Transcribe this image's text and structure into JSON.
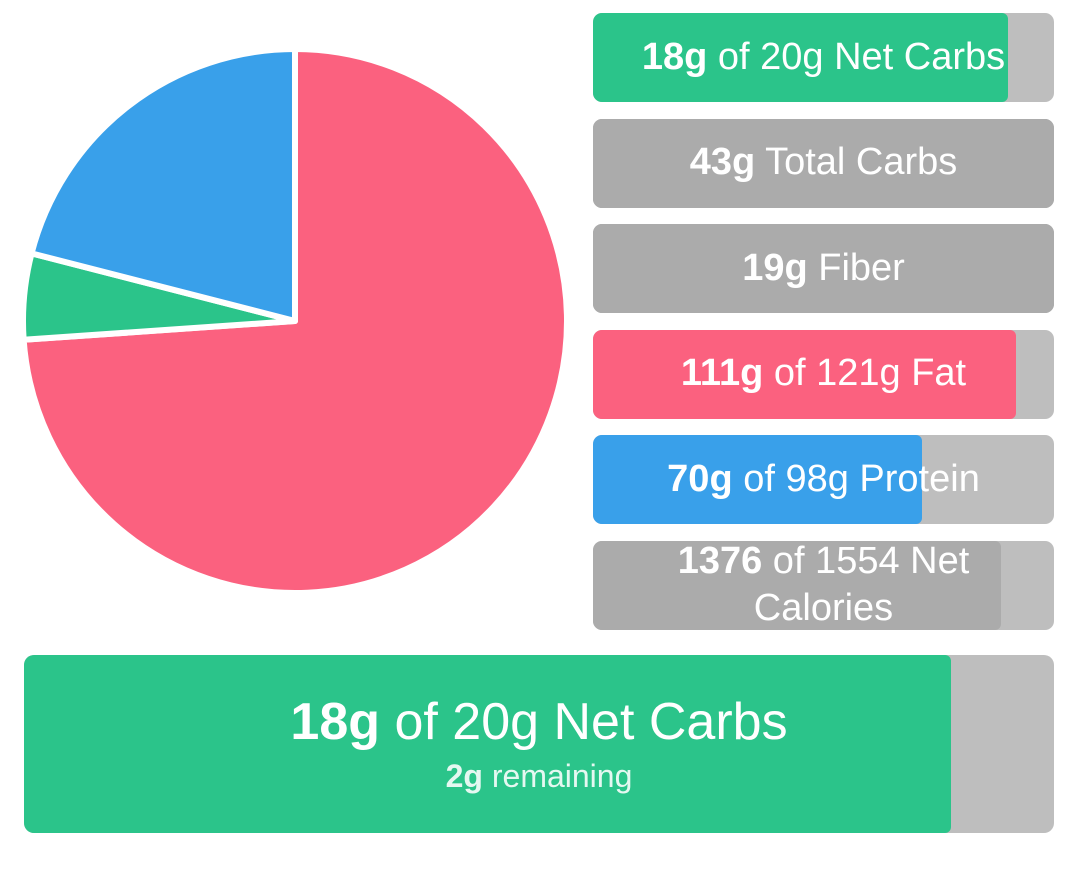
{
  "colors": {
    "green": "#2BC48A",
    "pink": "#FB617F",
    "blue": "#39A0EA",
    "gray_fill": "#ABABAB",
    "gray_track": "#BEBEBE",
    "background": "#FFFFFF"
  },
  "chart_data": [
    {
      "type": "pie",
      "title": "",
      "start_angle_deg": 0,
      "direction": "clockwise",
      "separator_color": "#FFFFFF",
      "slices": [
        {
          "label": "Fat",
          "percent": 73.9,
          "color": "#FB617F"
        },
        {
          "label": "Net Carbs",
          "percent": 5.1,
          "color": "#2BC48A"
        },
        {
          "label": "Protein",
          "percent": 21.0,
          "color": "#39A0EA"
        }
      ]
    },
    {
      "type": "bar",
      "title": "",
      "bars": [
        {
          "name": "net-carbs",
          "label_bold": "18g",
          "label_rest": " of 20g Net Carbs",
          "value": 18,
          "goal": 20,
          "unit": "g",
          "percent": 90,
          "fill_width": "90%",
          "fill_color": "#2BC48A",
          "track_color": "#BEBEBE"
        },
        {
          "name": "total-carbs",
          "label_bold": "43g",
          "label_rest": " Total Carbs",
          "value": 43,
          "unit": "g",
          "percent": 100,
          "fill_width": "100%",
          "fill_color": "#ABABAB",
          "track_color": "#ABABAB"
        },
        {
          "name": "fiber",
          "label_bold": "19g",
          "label_rest": " Fiber",
          "value": 19,
          "unit": "g",
          "percent": 100,
          "fill_width": "100%",
          "fill_color": "#ABABAB",
          "track_color": "#ABABAB"
        },
        {
          "name": "fat",
          "label_bold": "111g",
          "label_rest": " of 121g Fat",
          "value": 111,
          "goal": 121,
          "unit": "g",
          "percent": 91.7,
          "fill_width": "91.7%",
          "fill_color": "#FB617F",
          "track_color": "#BEBEBE"
        },
        {
          "name": "protein",
          "label_bold": "70g",
          "label_rest": " of 98g Protein",
          "value": 70,
          "goal": 98,
          "unit": "g",
          "percent": 71.4,
          "fill_width": "71.4%",
          "fill_color": "#39A0EA",
          "track_color": "#BEBEBE"
        },
        {
          "name": "net-calories",
          "label_bold": "1376",
          "label_rest": " of 1554 Net Calories",
          "value": 1376,
          "goal": 1554,
          "unit": "kcal",
          "percent": 88.5,
          "fill_width": "88.5%",
          "fill_color": "#ABABAB",
          "track_color": "#BEBEBE"
        }
      ]
    }
  ],
  "summary_bar": {
    "title_bold": "18g",
    "title_rest": " of 20g Net Carbs",
    "subtitle_bold": "2g",
    "subtitle_rest": " remaining",
    "value": 18,
    "goal": 20,
    "remaining": 2,
    "percent": 90,
    "fill_width": "90%",
    "fill_color": "#2BC48A",
    "track_color": "#BEBEBE"
  }
}
